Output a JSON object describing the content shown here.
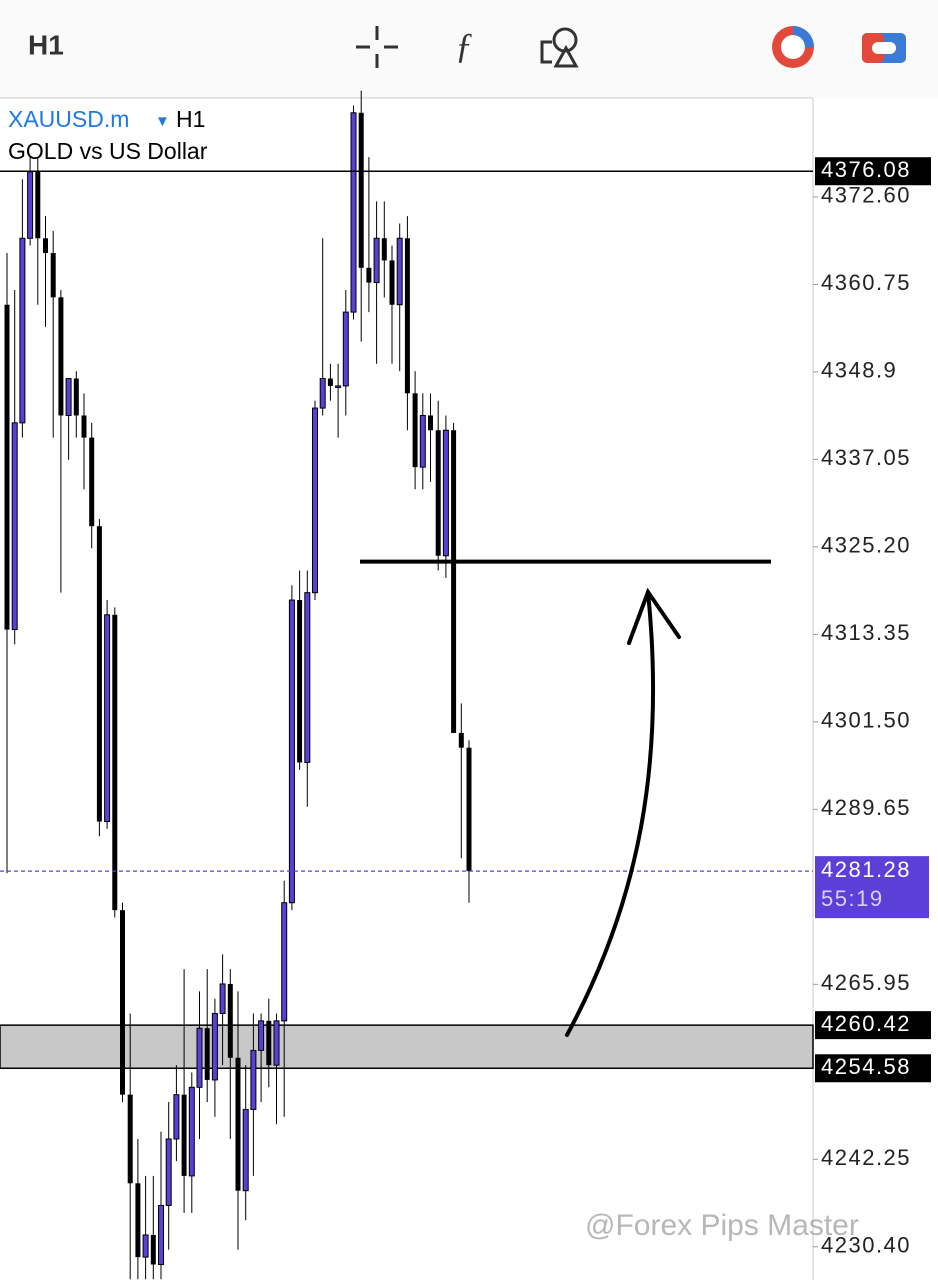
{
  "toolbar": {
    "timeframe": "H1"
  },
  "watermark": "@Forex Pips Master",
  "chart_data": {
    "type": "candlestick",
    "symbol": "XAUUSD.m",
    "symbol_marker": "▼",
    "timeframe": "H1",
    "description": "GOLD vs US Dollar",
    "bull_color": "#5b3fd6",
    "bear_color": "#000000",
    "ylim": [
      4225.9,
      4386.0
    ],
    "yticks": [
      {
        "value": 4372.6,
        "label": "4372.60"
      },
      4360.75,
      4348.9,
      4337.05,
      {
        "value": 4325.2,
        "label": "4325.20"
      },
      4313.35,
      {
        "value": 4301.5,
        "label": "4301.50"
      },
      4289.65,
      4265.95,
      4242.25,
      {
        "value": 4230.4,
        "label": "4230.40"
      }
    ],
    "open": [
      4358,
      4314,
      4342,
      4367,
      4376,
      4367,
      4365,
      4359,
      4343,
      4348,
      4343,
      4340,
      4328,
      4288,
      4316,
      4276,
      4251,
      4239,
      4229,
      4232,
      4228,
      4236,
      4245,
      4251,
      4240,
      4252,
      4260,
      4253,
      4262,
      4266,
      4256,
      4238,
      4249,
      4257,
      4261,
      4255,
      4261,
      4277,
      4318,
      4296,
      4319,
      4344,
      4348,
      4347,
      4347,
      4357,
      4384,
      4363,
      4361,
      4367,
      4364,
      4358,
      4367,
      4346,
      4336,
      4343,
      4341,
      4324,
      4341,
      4300,
      4298
    ],
    "high": [
      4365,
      4360,
      4375,
      4378,
      4378,
      4370,
      4368,
      4360,
      4348,
      4349,
      4346,
      4342,
      4329,
      4318,
      4317,
      4277,
      4262,
      4245,
      4240,
      4240,
      4246,
      4250,
      4255,
      4268,
      4254,
      4265,
      4268,
      4264,
      4270,
      4268,
      4265,
      4255,
      4262,
      4262,
      4264,
      4262,
      4280,
      4320,
      4322,
      4322,
      4345,
      4367,
      4350,
      4350,
      4360,
      4385,
      4387,
      4378,
      4372,
      4372,
      4366,
      4369,
      4370,
      4349,
      4346,
      4346,
      4345,
      4343,
      4342,
      4304,
      4299
    ],
    "low": [
      4281,
      4312,
      4340,
      4366,
      4358,
      4355,
      4340,
      4319,
      4337,
      4340,
      4333,
      4325,
      4286,
      4287,
      4275,
      4250,
      4226,
      4226,
      4226,
      4226,
      4226,
      4230,
      4242,
      4235,
      4235,
      4245,
      4250,
      4248,
      4255,
      4245,
      4230,
      4234,
      4240,
      4250,
      4252,
      4247,
      4248,
      4276,
      4295,
      4290,
      4318,
      4343,
      4345,
      4340,
      4343,
      4356,
      4353,
      4357,
      4350,
      4359,
      4350,
      4349,
      4341,
      4333,
      4333,
      4334,
      4322,
      4321,
      4300,
      4283,
      4277
    ],
    "close": [
      4314,
      4342,
      4367,
      4376,
      4367,
      4365,
      4359,
      4343,
      4348,
      4343,
      4340,
      4328,
      4288,
      4316,
      4276,
      4251,
      4239,
      4229,
      4232,
      4228,
      4236,
      4245,
      4251,
      4240,
      4252,
      4260,
      4253,
      4262,
      4266,
      4256,
      4238,
      4249,
      4257,
      4261,
      4255,
      4261,
      4277,
      4318,
      4296,
      4319,
      4344,
      4348,
      4347,
      4347,
      4357,
      4384,
      4363,
      4361,
      4367,
      4364,
      4358,
      4367,
      4346,
      4336,
      4343,
      4341,
      4324,
      4341,
      4300,
      4298,
      4281.28
    ],
    "levels": [
      4376.08
    ],
    "zone": [
      4260.42,
      4254.58
    ],
    "current": {
      "value": 4281.28,
      "countdown": "55:19",
      "color": "#5b3fd6"
    },
    "drawn_line": 4323.2
  }
}
